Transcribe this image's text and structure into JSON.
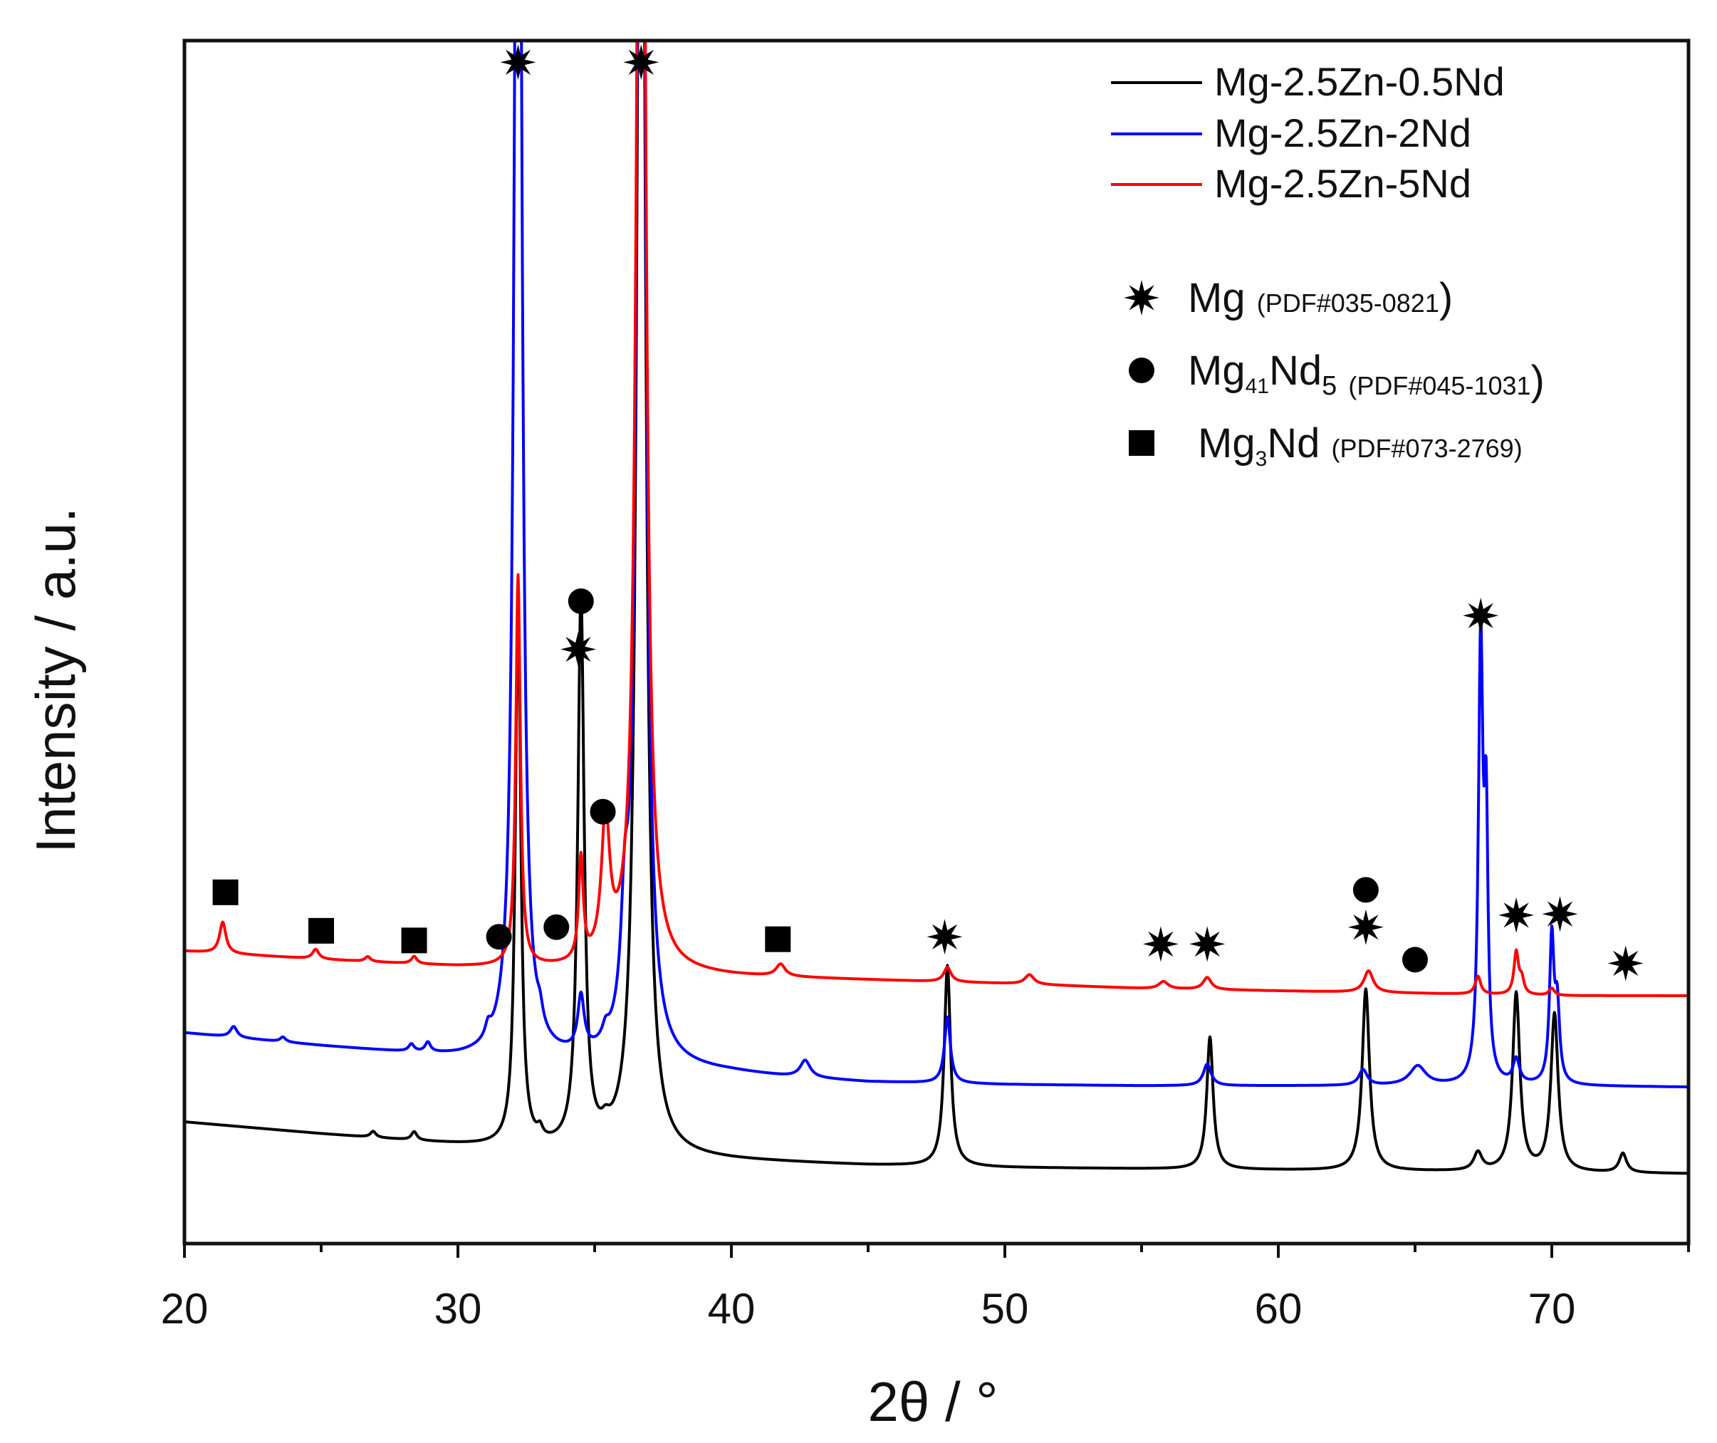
{
  "chart_data": {
    "type": "line",
    "xlabel": "2θ / °",
    "ylabel": "Intensity / a.u.",
    "xlim": [
      20,
      75
    ],
    "ylim": [
      0,
      100
    ],
    "x_ticks": [
      20,
      30,
      40,
      50,
      60,
      70
    ],
    "x_tick_labels": [
      "20",
      "30",
      "40",
      "50",
      "60",
      "70"
    ],
    "y_ticks_shown": false,
    "legend_position": "top-right",
    "series": [
      {
        "name": "Mg-2.5Zn-0.5Nd",
        "color": "#000000",
        "baseline": {
          "x": [
            20,
            25,
            30,
            35,
            40,
            45,
            50,
            55,
            60,
            65,
            70,
            75
          ],
          "y": [
            10.1,
            9.1,
            8.2,
            7.4,
            6.9,
            6.5,
            6.3,
            6.2,
            6.1,
            6.0,
            5.9,
            5.8
          ]
        },
        "peaks": [
          {
            "x": 26.9,
            "h": 0.5,
            "w": 0.12
          },
          {
            "x": 28.4,
            "h": 0.7,
            "w": 0.12
          },
          {
            "x": 32.2,
            "h": 45.0,
            "w": 0.12
          },
          {
            "x": 33.0,
            "h": 0.8,
            "w": 0.12
          },
          {
            "x": 34.5,
            "h": 45.8,
            "w": 0.14
          },
          {
            "x": 35.4,
            "h": 0.8,
            "w": 0.18
          },
          {
            "x": 36.7,
            "h": 150,
            "w": 0.16
          },
          {
            "x": 47.9,
            "h": 16.7,
            "w": 0.14
          },
          {
            "x": 57.5,
            "h": 11.0,
            "w": 0.14
          },
          {
            "x": 63.2,
            "h": 15.1,
            "w": 0.16
          },
          {
            "x": 67.3,
            "h": 1.5,
            "w": 0.18
          },
          {
            "x": 68.7,
            "h": 14.8,
            "w": 0.16
          },
          {
            "x": 70.1,
            "h": 13.1,
            "w": 0.16
          },
          {
            "x": 72.6,
            "h": 1.6,
            "w": 0.16
          }
        ]
      },
      {
        "name": "Mg-2.5Zn-2Nd",
        "color": "#0000ff",
        "baseline": {
          "x": [
            20,
            25,
            30,
            35,
            40,
            42,
            45,
            50,
            55,
            60,
            65,
            70,
            75
          ],
          "y": [
            17.5,
            16.4,
            15.4,
            14.9,
            14.2,
            13.8,
            13.4,
            13.2,
            13.1,
            13.1,
            13.1,
            13.1,
            13.0
          ]
        },
        "peaks": [
          {
            "x": 21.8,
            "h": 0.9,
            "w": 0.15
          },
          {
            "x": 23.6,
            "h": 0.4,
            "w": 0.12
          },
          {
            "x": 28.3,
            "h": 0.6,
            "w": 0.12
          },
          {
            "x": 28.9,
            "h": 0.8,
            "w": 0.12
          },
          {
            "x": 31.1,
            "h": 1.0,
            "w": 0.12
          },
          {
            "x": 32.2,
            "h": 150,
            "w": 0.14
          },
          {
            "x": 33.0,
            "h": 1.2,
            "w": 0.12
          },
          {
            "x": 34.5,
            "h": 4.5,
            "w": 0.14
          },
          {
            "x": 35.4,
            "h": 1.0,
            "w": 0.14
          },
          {
            "x": 36.1,
            "h": 8.5,
            "w": 0.16
          },
          {
            "x": 36.7,
            "h": 150,
            "w": 0.16
          },
          {
            "x": 42.7,
            "h": 1.4,
            "w": 0.22
          },
          {
            "x": 47.9,
            "h": 5.5,
            "w": 0.13
          },
          {
            "x": 57.4,
            "h": 1.8,
            "w": 0.17
          },
          {
            "x": 63.1,
            "h": 1.3,
            "w": 0.18
          },
          {
            "x": 65.1,
            "h": 1.6,
            "w": 0.35
          },
          {
            "x": 67.4,
            "h": 36.2,
            "w": 0.1
          },
          {
            "x": 67.6,
            "h": 20.0,
            "w": 0.08
          },
          {
            "x": 68.7,
            "h": 2.0,
            "w": 0.14
          },
          {
            "x": 70.0,
            "h": 12.0,
            "w": 0.1
          },
          {
            "x": 70.2,
            "h": 6.0,
            "w": 0.1
          }
        ]
      },
      {
        "name": "Mg-2.5Zn-5Nd",
        "color": "#ff0000",
        "baseline": {
          "x": [
            20,
            25,
            30,
            35,
            40,
            45,
            50,
            55,
            60,
            65,
            70,
            75
          ],
          "y": [
            24.3,
            23.6,
            23.0,
            22.7,
            22.2,
            21.9,
            21.6,
            21.2,
            21.0,
            20.8,
            20.6,
            20.6
          ]
        },
        "peaks": [
          {
            "x": 21.4,
            "h": 2.6,
            "w": 0.14
          },
          {
            "x": 24.8,
            "h": 0.8,
            "w": 0.14
          },
          {
            "x": 26.7,
            "h": 0.4,
            "w": 0.12
          },
          {
            "x": 28.4,
            "h": 0.6,
            "w": 0.12
          },
          {
            "x": 32.2,
            "h": 32.5,
            "w": 0.1
          },
          {
            "x": 34.5,
            "h": 8.5,
            "w": 0.1
          },
          {
            "x": 35.4,
            "h": 11.6,
            "w": 0.18
          },
          {
            "x": 36.7,
            "h": 150,
            "w": 0.16
          },
          {
            "x": 41.8,
            "h": 1.0,
            "w": 0.2
          },
          {
            "x": 47.9,
            "h": 1.2,
            "w": 0.16
          },
          {
            "x": 50.9,
            "h": 0.8,
            "w": 0.2
          },
          {
            "x": 55.8,
            "h": 0.6,
            "w": 0.2
          },
          {
            "x": 57.4,
            "h": 1.0,
            "w": 0.18
          },
          {
            "x": 63.3,
            "h": 1.8,
            "w": 0.2
          },
          {
            "x": 67.3,
            "h": 1.5,
            "w": 0.12
          },
          {
            "x": 68.7,
            "h": 3.5,
            "w": 0.1
          },
          {
            "x": 68.9,
            "h": 1.2,
            "w": 0.1
          },
          {
            "x": 70.0,
            "h": 0.6,
            "w": 0.12
          }
        ]
      }
    ],
    "phase_legend": [
      {
        "symbol": "star",
        "label": "Mg",
        "sub": "",
        "label_tail": "",
        "ref": "(PDF#035-0821)"
      },
      {
        "symbol": "circle",
        "label": "Mg",
        "sub": "41",
        "label_tail": "Nd5",
        "ref": "(PDF#045-1031)"
      },
      {
        "symbol": "square",
        "label": "Mg",
        "sub": "3",
        "label_tail": "Nd",
        "ref": "(PDF#073-2769)"
      }
    ],
    "phase_markers": [
      {
        "symbol": "star",
        "x": 32.2,
        "y": 98.2
      },
      {
        "symbol": "star",
        "x": 36.7,
        "y": 98.2
      },
      {
        "symbol": "star",
        "x": 34.4,
        "y": 49.4
      },
      {
        "symbol": "circle",
        "x": 34.5,
        "y": 53.4
      },
      {
        "symbol": "circle",
        "x": 35.3,
        "y": 35.9
      },
      {
        "symbol": "square",
        "x": 21.5,
        "y": 29.2
      },
      {
        "symbol": "square",
        "x": 25.0,
        "y": 26.0
      },
      {
        "symbol": "square",
        "x": 28.4,
        "y": 25.2
      },
      {
        "symbol": "circle",
        "x": 31.5,
        "y": 25.5
      },
      {
        "symbol": "circle",
        "x": 33.6,
        "y": 26.3
      },
      {
        "symbol": "square",
        "x": 41.7,
        "y": 25.3
      },
      {
        "symbol": "star",
        "x": 47.8,
        "y": 25.5
      },
      {
        "symbol": "star",
        "x": 55.7,
        "y": 24.9
      },
      {
        "symbol": "star",
        "x": 57.4,
        "y": 24.9
      },
      {
        "symbol": "circle",
        "x": 63.2,
        "y": 29.4
      },
      {
        "symbol": "star",
        "x": 63.2,
        "y": 26.3
      },
      {
        "symbol": "circle",
        "x": 65.0,
        "y": 23.6
      },
      {
        "symbol": "star",
        "x": 67.4,
        "y": 52.2
      },
      {
        "symbol": "star",
        "x": 68.7,
        "y": 27.3
      },
      {
        "symbol": "star",
        "x": 70.3,
        "y": 27.4
      },
      {
        "symbol": "star",
        "x": 72.7,
        "y": 23.3
      }
    ]
  }
}
